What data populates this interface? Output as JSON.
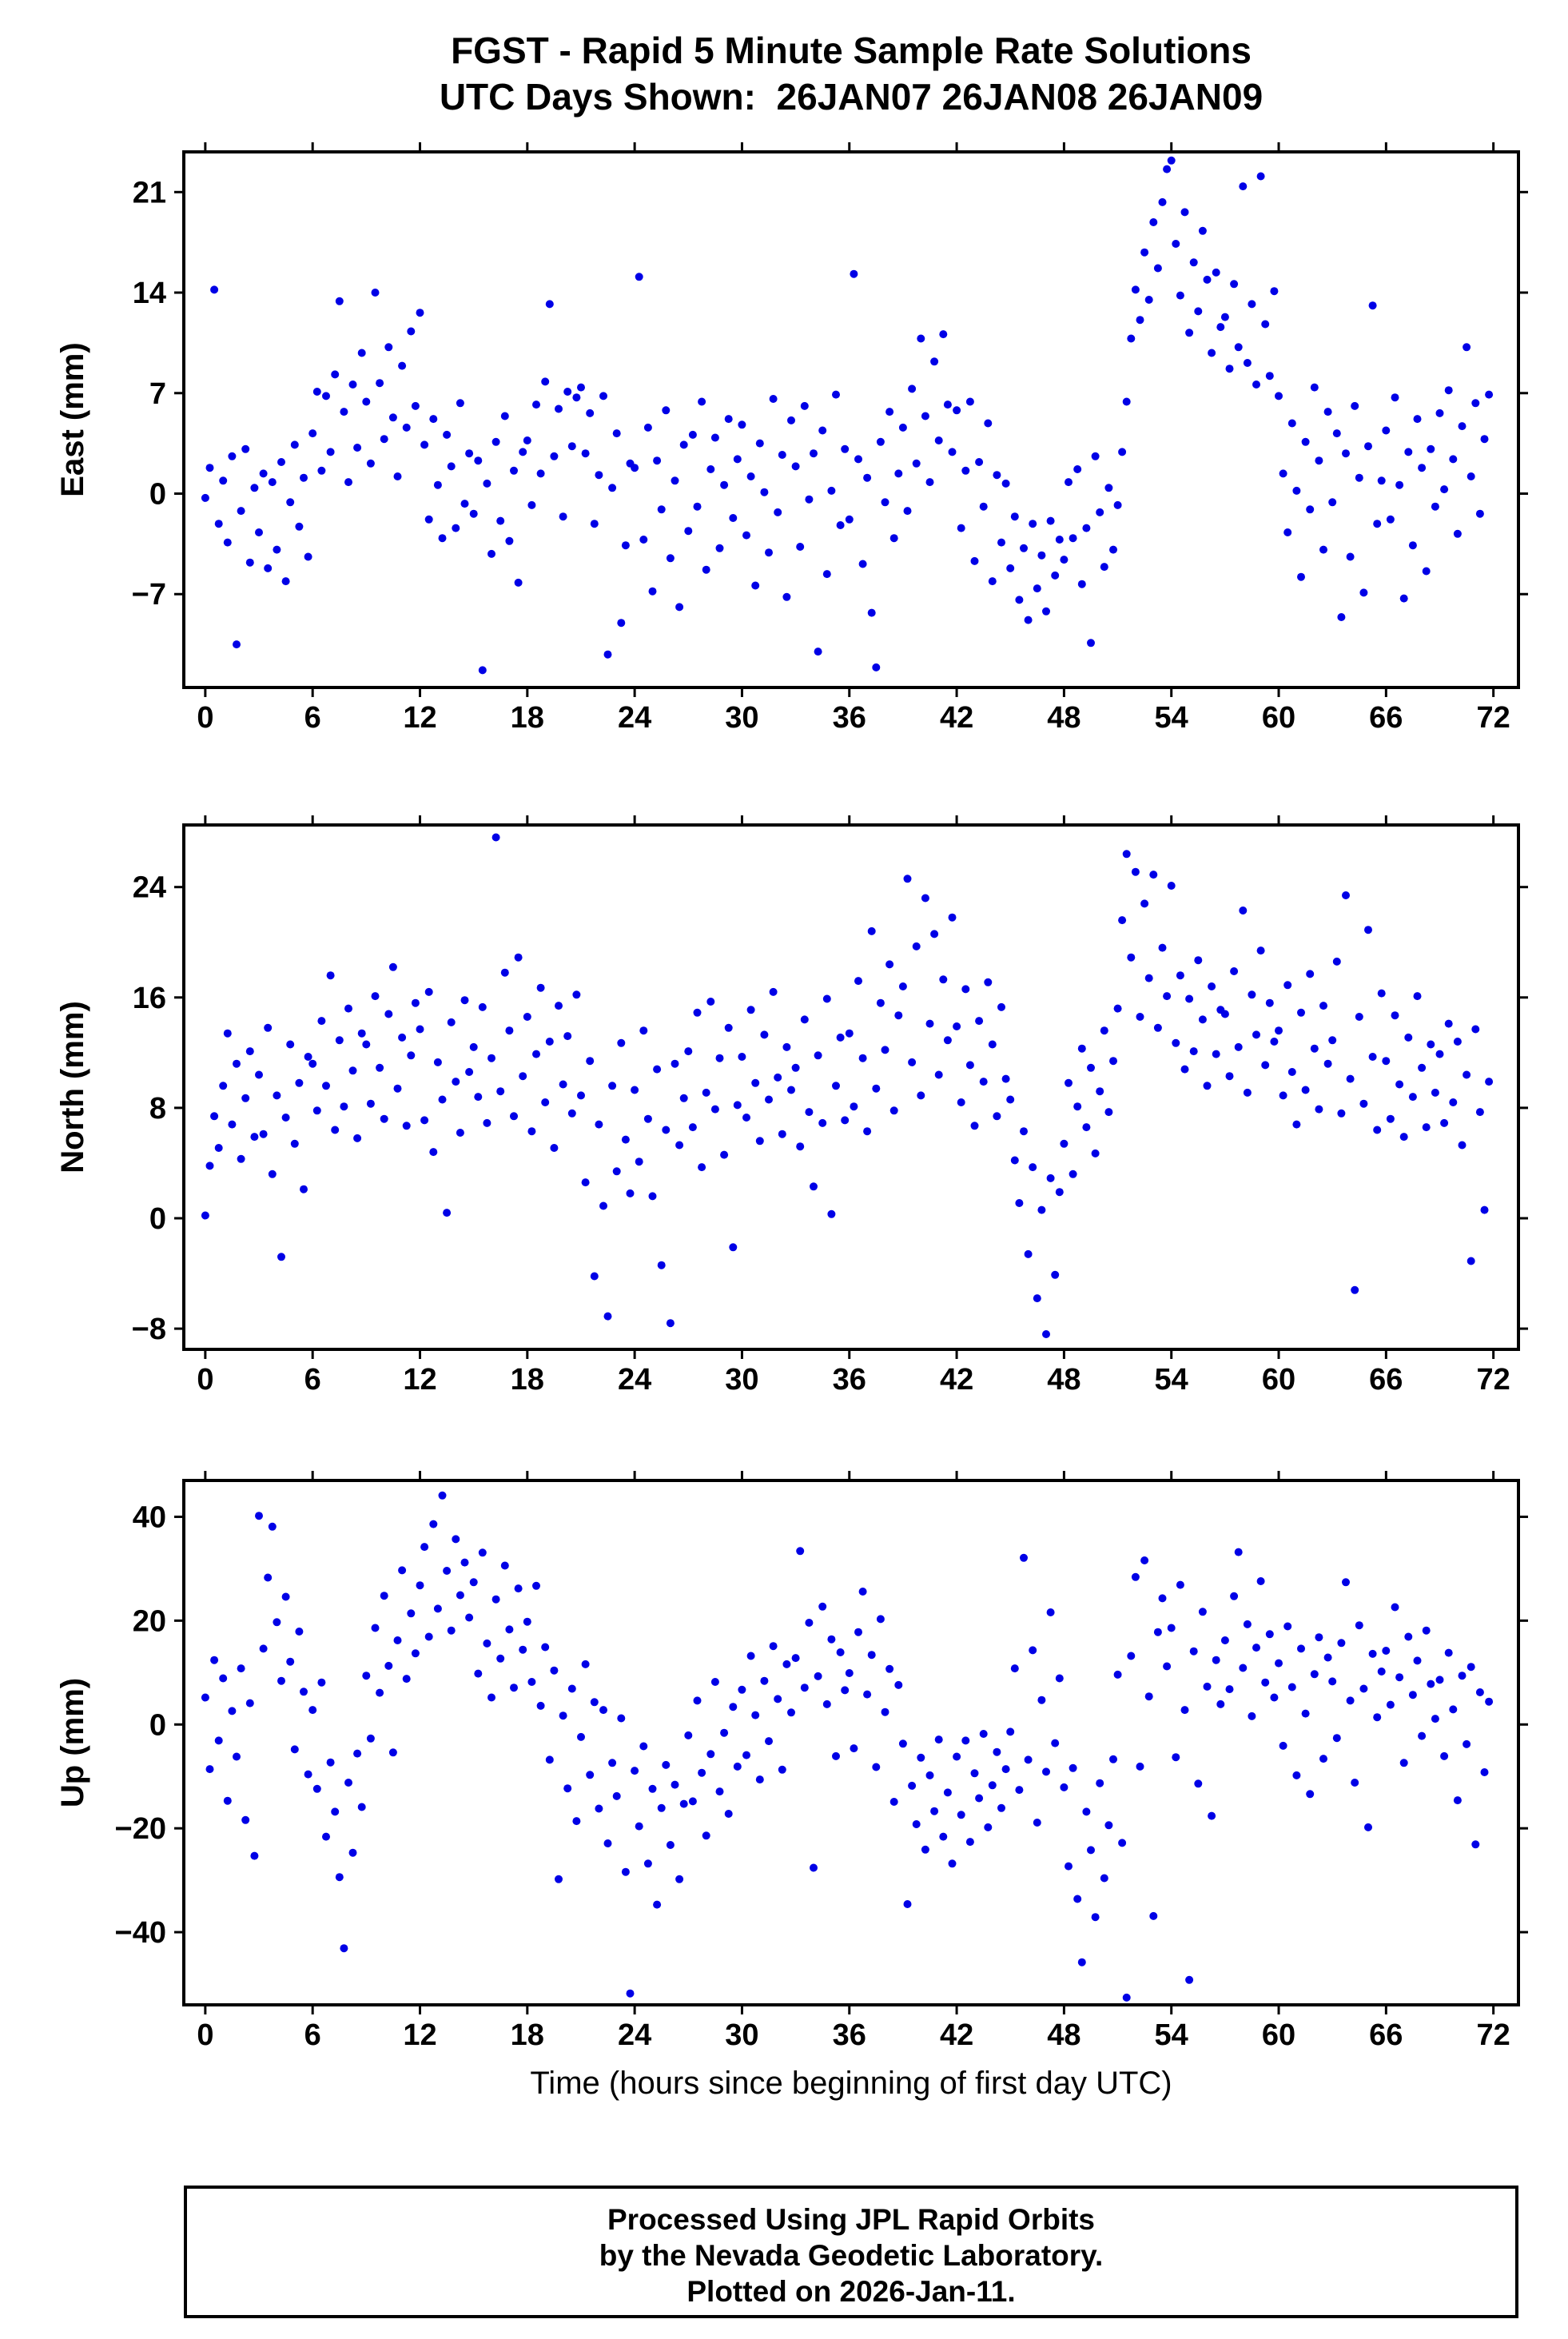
{
  "title": {
    "line1": "FGST - Rapid 5 Minute Sample Rate Solutions",
    "line2": "UTC Days Shown:  26JAN07 26JAN08 26JAN09",
    "station": "FGST",
    "days_shown": [
      "26JAN07",
      "26JAN08",
      "26JAN09"
    ]
  },
  "xlabel": "Time (hours since beginning of first day UTC)",
  "footer": {
    "line1": "Processed Using JPL Rapid Orbits",
    "line2": "by the Nevada Geodetic Laboratory.",
    "line3": "Plotted on 2026-Jan-11."
  },
  "point_color": "#0000e6",
  "chart_data": [
    {
      "type": "scatter",
      "name": "east",
      "ylabel": "East (mm)",
      "xlim": [
        -1.2,
        73.4
      ],
      "ylim": [
        -13.5,
        23.8
      ],
      "xticks": [
        0,
        6,
        12,
        18,
        24,
        30,
        36,
        42,
        48,
        54,
        60,
        66,
        72
      ],
      "yticks": [
        -7,
        0,
        7,
        14,
        21
      ],
      "grid": false,
      "x_start": 0,
      "x_step": 0.25,
      "values": [
        -0.3,
        1.8,
        14.2,
        -2.1,
        0.9,
        -3.4,
        2.6,
        -10.5,
        -1.2,
        3.1,
        -4.8,
        0.4,
        -2.7,
        1.4,
        -5.2,
        0.8,
        -3.9,
        2.2,
        -6.1,
        -0.6,
        3.4,
        -2.3,
        1.1,
        -4.4,
        4.2,
        7.1,
        1.6,
        6.8,
        2.9,
        8.3,
        13.4,
        5.7,
        0.8,
        7.6,
        3.2,
        9.8,
        6.4,
        2.1,
        14.0,
        7.7,
        3.8,
        10.2,
        5.3,
        1.2,
        8.9,
        4.6,
        11.3,
        6.1,
        12.6,
        3.4,
        -1.8,
        5.2,
        0.6,
        -3.1,
        4.1,
        1.9,
        -2.4,
        6.3,
        -0.7,
        2.8,
        -1.4,
        2.3,
        -12.3,
        0.7,
        -4.2,
        3.6,
        -1.9,
        5.4,
        -3.3,
        1.6,
        -6.2,
        2.9,
        3.7,
        -0.8,
        6.2,
        1.4,
        7.8,
        13.2,
        2.6,
        5.9,
        -1.6,
        7.1,
        3.3,
        6.7,
        7.4,
        2.8,
        5.6,
        -2.1,
        1.3,
        6.8,
        -11.2,
        0.4,
        4.2,
        -9.0,
        -3.6,
        2.1,
        1.8,
        15.1,
        -3.2,
        4.6,
        -6.8,
        2.3,
        -1.1,
        5.8,
        -4.5,
        0.9,
        -7.9,
        3.4,
        -2.6,
        4.1,
        -0.9,
        6.4,
        -5.3,
        1.7,
        3.9,
        -3.8,
        0.6,
        5.2,
        -1.7,
        2.4,
        4.8,
        -2.9,
        1.2,
        -6.4,
        3.5,
        0.1,
        -4.1,
        6.6,
        -1.3,
        2.7,
        -7.2,
        5.1,
        1.9,
        -3.7,
        6.1,
        -0.4,
        2.8,
        -11.0,
        4.4,
        -5.6,
        0.2,
        6.9,
        -2.2,
        3.1,
        -1.8,
        15.3,
        2.4,
        -4.9,
        1.1,
        -8.3,
        -12.1,
        3.6,
        -0.6,
        5.7,
        -3.1,
        1.4,
        4.6,
        -1.2,
        7.3,
        2.1,
        10.8,
        5.4,
        0.8,
        9.2,
        3.7,
        11.1,
        6.2,
        2.9,
        5.8,
        -2.4,
        1.6,
        6.4,
        -4.7,
        2.2,
        -0.9,
        4.9,
        -6.1,
        1.3,
        -3.4,
        0.7,
        -5.2,
        -1.6,
        -7.4,
        -3.8,
        -8.8,
        -2.1,
        -6.6,
        -4.3,
        -8.2,
        -1.9,
        -5.7,
        -3.2,
        -4.6,
        0.8,
        -3.1,
        1.7,
        -6.3,
        -2.4,
        -10.4,
        2.6,
        -1.3,
        -5.1,
        0.4,
        -3.9,
        -0.8,
        2.9,
        6.4,
        10.8,
        14.2,
        12.1,
        16.8,
        13.5,
        18.9,
        15.7,
        20.3,
        22.6,
        23.2,
        17.4,
        13.8,
        19.6,
        11.2,
        16.1,
        12.7,
        18.3,
        14.9,
        9.8,
        15.4,
        11.6,
        12.3,
        8.7,
        14.6,
        10.2,
        21.4,
        9.1,
        13.2,
        7.6,
        22.1,
        11.8,
        8.2,
        14.1,
        6.8,
        1.4,
        -2.7,
        4.9,
        0.2,
        -5.8,
        3.6,
        -1.1,
        7.4,
        2.3,
        -3.9,
        5.7,
        -0.6,
        4.2,
        -8.6,
        2.8,
        -4.4,
        6.1,
        1.1,
        -6.9,
        3.3,
        13.1,
        -2.1,
        0.9,
        4.4,
        -1.8,
        6.7,
        0.6,
        -7.3,
        2.9,
        -3.6,
        5.2,
        1.8,
        -5.4,
        3.1,
        -0.9,
        5.6,
        0.3,
        7.2,
        2.4,
        -2.8,
        4.7,
        10.2,
        1.2,
        6.3,
        -1.4,
        3.8,
        6.9
      ]
    },
    {
      "type": "scatter",
      "name": "north",
      "ylabel": "North (mm)",
      "xlim": [
        -1.2,
        73.4
      ],
      "ylim": [
        -9.5,
        28.5
      ],
      "xticks": [
        0,
        6,
        12,
        18,
        24,
        30,
        36,
        42,
        48,
        54,
        60,
        66,
        72
      ],
      "yticks": [
        -8,
        0,
        8,
        16,
        24
      ],
      "grid": false,
      "x_start": 0,
      "x_step": 0.25,
      "values": [
        0.2,
        3.8,
        7.4,
        5.1,
        9.6,
        13.4,
        6.8,
        11.2,
        4.3,
        8.7,
        12.1,
        5.9,
        10.4,
        6.1,
        13.8,
        3.2,
        8.9,
        -2.8,
        7.3,
        12.6,
        5.4,
        9.8,
        2.1,
        11.7,
        11.2,
        7.8,
        14.3,
        9.6,
        17.6,
        6.4,
        12.9,
        8.1,
        15.2,
        10.7,
        5.8,
        13.4,
        12.6,
        8.3,
        16.1,
        10.9,
        7.2,
        14.8,
        18.2,
        9.4,
        13.1,
        6.7,
        11.8,
        15.6,
        13.7,
        7.1,
        16.4,
        4.8,
        11.3,
        8.6,
        0.4,
        14.2,
        9.9,
        6.2,
        15.8,
        10.6,
        12.4,
        8.8,
        15.3,
        6.9,
        11.6,
        27.6,
        9.2,
        17.8,
        13.6,
        7.4,
        18.9,
        10.3,
        14.6,
        6.3,
        11.9,
        16.7,
        8.4,
        12.8,
        5.1,
        15.4,
        9.7,
        13.2,
        7.6,
        16.2,
        8.9,
        2.6,
        11.4,
        -4.2,
        6.8,
        0.9,
        -7.1,
        9.6,
        3.4,
        12.7,
        5.7,
        1.8,
        9.3,
        4.1,
        13.6,
        7.2,
        1.6,
        10.8,
        -3.4,
        6.4,
        -7.6,
        11.2,
        5.3,
        8.7,
        12.1,
        6.6,
        14.9,
        3.7,
        9.1,
        15.7,
        7.9,
        11.6,
        4.6,
        13.8,
        -2.1,
        8.2,
        11.7,
        7.3,
        15.1,
        9.8,
        5.6,
        13.3,
        8.6,
        16.4,
        10.2,
        6.1,
        12.4,
        9.3,
        10.9,
        5.2,
        14.4,
        7.7,
        2.3,
        11.8,
        6.9,
        15.9,
        0.3,
        9.6,
        13.1,
        7.1,
        13.4,
        8.1,
        17.2,
        11.6,
        6.3,
        20.8,
        9.4,
        15.6,
        12.2,
        18.4,
        7.8,
        14.7,
        16.8,
        24.6,
        11.3,
        19.7,
        8.9,
        23.2,
        14.1,
        20.6,
        10.4,
        17.3,
        12.9,
        21.8,
        13.9,
        8.4,
        16.6,
        11.1,
        6.7,
        14.3,
        9.9,
        17.1,
        12.6,
        7.4,
        15.3,
        10.1,
        8.6,
        4.2,
        1.1,
        6.3,
        -2.6,
        3.7,
        -5.8,
        0.6,
        -8.4,
        2.9,
        -4.1,
        1.9,
        5.4,
        9.8,
        3.2,
        8.1,
        12.3,
        6.6,
        10.9,
        4.7,
        9.2,
        13.6,
        7.7,
        11.4,
        15.2,
        21.6,
        26.4,
        18.9,
        25.1,
        14.6,
        22.8,
        17.4,
        24.9,
        13.8,
        19.6,
        16.1,
        24.1,
        12.7,
        17.6,
        10.8,
        15.9,
        12.1,
        18.7,
        14.4,
        9.6,
        16.8,
        11.9,
        15.1,
        14.8,
        10.3,
        17.9,
        12.4,
        22.3,
        9.1,
        16.2,
        13.3,
        19.4,
        11.1,
        15.6,
        12.8,
        13.6,
        8.9,
        16.9,
        10.6,
        6.8,
        14.9,
        9.3,
        17.7,
        12.3,
        7.9,
        15.4,
        11.2,
        12.9,
        18.6,
        7.6,
        23.4,
        10.1,
        -5.2,
        14.6,
        8.3,
        20.9,
        11.7,
        6.4,
        16.3,
        11.4,
        7.2,
        14.7,
        9.7,
        5.9,
        13.1,
        8.8,
        16.1,
        10.9,
        6.6,
        12.6,
        9.1,
        11.9,
        6.9,
        14.1,
        8.4,
        12.8,
        5.3,
        10.4,
        -3.1,
        13.7,
        7.7,
        0.6,
        9.9
      ]
    },
    {
      "type": "scatter",
      "name": "up",
      "ylabel": "Up (mm)",
      "xlim": [
        -1.2,
        73.4
      ],
      "ylim": [
        -54,
        47
      ],
      "xticks": [
        0,
        6,
        12,
        18,
        24,
        30,
        36,
        42,
        48,
        54,
        60,
        66,
        72
      ],
      "yticks": [
        -40,
        -20,
        0,
        20,
        40
      ],
      "grid": false,
      "x_start": 0,
      "x_step": 0.25,
      "values": [
        5.2,
        -8.6,
        12.4,
        -3.1,
        8.9,
        -14.7,
        2.6,
        -6.2,
        10.8,
        -18.4,
        4.1,
        -25.3,
        40.2,
        14.6,
        28.3,
        38.1,
        19.7,
        8.4,
        24.6,
        12.1,
        -4.8,
        17.9,
        6.3,
        -9.6,
        2.8,
        -12.4,
        8.1,
        -21.6,
        -7.3,
        -16.8,
        -29.4,
        -43.1,
        -11.2,
        -24.7,
        -5.6,
        -15.9,
        9.4,
        -2.7,
        18.6,
        6.1,
        24.8,
        11.3,
        -5.4,
        16.2,
        29.7,
        8.8,
        21.4,
        13.7,
        26.8,
        34.2,
        16.9,
        38.6,
        22.3,
        44.1,
        29.6,
        18.1,
        35.7,
        24.9,
        31.2,
        20.6,
        27.4,
        9.8,
        33.1,
        15.6,
        5.2,
        24.1,
        12.7,
        30.6,
        18.3,
        7.1,
        26.2,
        14.4,
        19.8,
        8.2,
        26.7,
        3.6,
        14.9,
        -6.8,
        10.4,
        -29.8,
        1.7,
        -12.3,
        6.9,
        -18.6,
        -2.4,
        11.6,
        -9.7,
        4.3,
        -16.2,
        2.8,
        -22.9,
        -7.4,
        -13.8,
        1.2,
        -28.4,
        -51.8,
        -8.9,
        -19.6,
        -4.2,
        -26.8,
        -12.4,
        -34.7,
        -16.1,
        -7.8,
        -23.2,
        -11.6,
        -29.8,
        -15.3,
        -2.1,
        -14.8,
        4.6,
        -9.3,
        -21.4,
        -5.7,
        8.2,
        -12.9,
        -1.6,
        -17.2,
        3.4,
        -8.1,
        6.7,
        -5.9,
        13.2,
        1.8,
        -10.6,
        8.4,
        -3.2,
        15.1,
        4.9,
        -8.7,
        11.6,
        2.3,
        12.8,
        33.4,
        7.1,
        19.6,
        -27.6,
        9.3,
        22.7,
        3.9,
        16.4,
        -6.1,
        13.9,
        6.6,
        9.9,
        -4.6,
        17.8,
        25.6,
        5.8,
        13.4,
        -8.2,
        20.3,
        2.4,
        10.7,
        -14.9,
        7.6,
        -3.7,
        -34.6,
        -11.8,
        -19.2,
        -6.4,
        -24.1,
        -9.8,
        -16.7,
        -2.9,
        -21.6,
        -13.1,
        -26.8,
        -6.2,
        -17.4,
        -3.1,
        -22.6,
        -9.4,
        -14.2,
        -1.8,
        -19.8,
        -11.7,
        -5.3,
        -16.1,
        -8.6,
        -1.4,
        10.8,
        -12.6,
        32.1,
        -6.8,
        14.3,
        -18.9,
        4.7,
        -9.1,
        21.6,
        -3.6,
        8.9,
        -12.1,
        -27.3,
        -8.4,
        -33.6,
        -45.8,
        -16.8,
        -24.2,
        -37.1,
        -11.3,
        -29.6,
        -19.4,
        -6.7,
        9.6,
        -22.8,
        -52.6,
        13.2,
        28.4,
        -8.1,
        31.6,
        5.4,
        -36.9,
        17.8,
        24.3,
        11.2,
        18.6,
        -6.3,
        26.9,
        2.8,
        -49.2,
        14.1,
        -11.4,
        21.7,
        7.3,
        -17.6,
        12.4,
        3.9,
        16.2,
        6.8,
        24.7,
        33.2,
        10.9,
        19.3,
        1.6,
        14.8,
        27.6,
        8.1,
        17.4,
        5.2,
        11.8,
        -4.1,
        18.9,
        7.2,
        -9.8,
        14.6,
        2.1,
        -13.4,
        9.7,
        16.8,
        -6.6,
        12.9,
        8.3,
        -2.6,
        15.7,
        27.4,
        4.6,
        -11.2,
        19.1,
        6.9,
        -19.8,
        13.6,
        1.4,
        10.2,
        14.2,
        3.8,
        22.6,
        9.1,
        -7.4,
        16.9,
        5.7,
        12.3,
        -2.2,
        18.1,
        7.8,
        1.1,
        8.6,
        -6.1,
        13.8,
        2.9,
        -14.6,
        9.4,
        -3.8,
        11.1,
        -23.1,
        6.2,
        -9.2,
        4.4
      ]
    }
  ]
}
